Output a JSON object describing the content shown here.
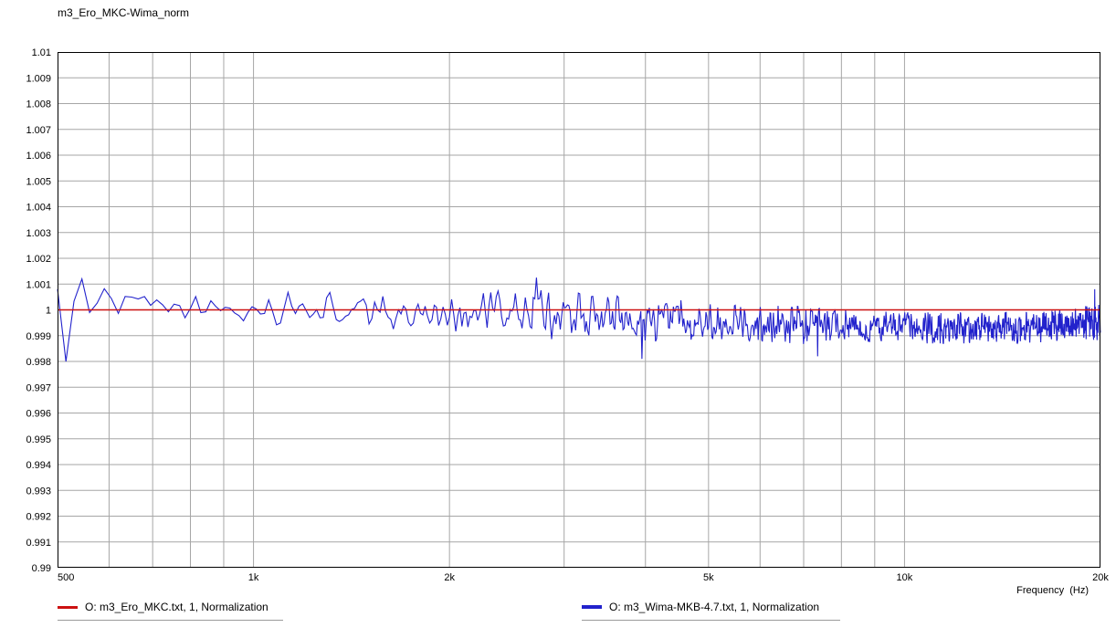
{
  "window": {
    "title": "m3_Ero_MKC-Wima_norm"
  },
  "chart_data": {
    "type": "line",
    "title": "m3_Ero_MKC-Wima_norm",
    "xlabel": "Frequency  (Hz)",
    "x_scale": "log",
    "x_range": [
      500,
      20000
    ],
    "y_range": [
      0.99,
      1.01
    ],
    "y_tick_step": 0.001,
    "grid": "on",
    "grid_color": "#a6a6a6",
    "y_ticks": [
      "1.01",
      "1.009",
      "1.008",
      "1.007",
      "1.006",
      "1.005",
      "1.004",
      "1.003",
      "1.002",
      "1.001",
      "1",
      "0.999",
      "0.998",
      "0.997",
      "0.996",
      "0.995",
      "0.994",
      "0.993",
      "0.992",
      "0.991",
      "0.99"
    ],
    "x_ticks": [
      {
        "f": 500,
        "label": "500"
      },
      {
        "f": 1000,
        "label": "1k"
      },
      {
        "f": 2000,
        "label": "2k"
      },
      {
        "f": 5000,
        "label": "5k"
      },
      {
        "f": 10000,
        "label": "10k"
      },
      {
        "f": 20000,
        "label": "20k"
      }
    ],
    "x_gridlines": [
      600,
      700,
      800,
      900,
      1000,
      2000,
      3000,
      4000,
      5000,
      6000,
      7000,
      8000,
      9000,
      10000
    ],
    "legend_position": "bottom",
    "series": [
      {
        "name": "O: m3_Ero_MKC.txt, 1, Normalization",
        "color": "#cc1111",
        "kind": "constant",
        "value": 1.0,
        "width": 1.4
      },
      {
        "name": "O: m3_Wima-MKB-4.7.txt, 1, Normalization",
        "color": "#2222cc",
        "kind": "noisy",
        "width": 1.1,
        "df_hz": 15,
        "seed": 1234,
        "envelope": {
          "f": [
            500,
            560,
            620,
            700,
            800,
            900,
            1000,
            1200,
            1500,
            2000,
            2400,
            2800,
            3200,
            3600,
            4000,
            5000,
            6000,
            7000,
            8000,
            10000,
            12000,
            15000,
            18000,
            19500,
            20000
          ],
          "mean": [
            1.0004,
            1.0004,
            1.0001,
            1.0,
            1.0001,
            0.9999,
            1.0,
            1.0,
            0.9999,
            0.9999,
            0.9999,
            0.9998,
            0.9998,
            0.9997,
            0.9996,
            0.9996,
            0.9995,
            0.9994,
            0.9994,
            0.9993,
            0.9993,
            0.9993,
            0.9994,
            0.9995,
            0.9995
          ],
          "amp": [
            0.0009,
            0.0008,
            0.0007,
            0.0006,
            0.0005,
            0.0005,
            0.0005,
            0.0006,
            0.0006,
            0.0006,
            0.0007,
            0.0008,
            0.0007,
            0.0007,
            0.0007,
            0.0006,
            0.0006,
            0.0006,
            0.0005,
            0.0005,
            0.0005,
            0.0005,
            0.0005,
            0.0006,
            0.0007
          ]
        },
        "events": [
          {
            "f": 500,
            "v": 1.0008
          },
          {
            "f": 512,
            "v": 0.998
          },
          {
            "f": 548,
            "v": 1.0012
          },
          {
            "f": 2720,
            "v": 1.00125
          },
          {
            "f": 3950,
            "v": 0.9981
          },
          {
            "f": 7350,
            "v": 0.9982
          },
          {
            "f": 19600,
            "v": 1.0008
          }
        ]
      }
    ]
  }
}
